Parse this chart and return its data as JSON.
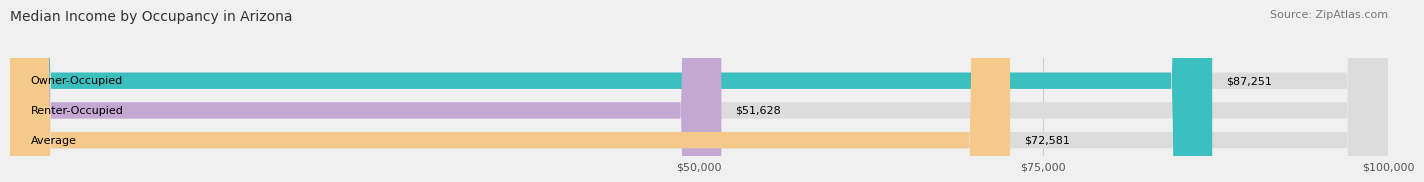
{
  "title": "Median Income by Occupancy in Arizona",
  "source": "Source: ZipAtlas.com",
  "categories": [
    "Owner-Occupied",
    "Renter-Occupied",
    "Average"
  ],
  "values": [
    87251,
    51628,
    72581
  ],
  "bar_colors": [
    "#3bbfbf",
    "#c4a8d4",
    "#f5c98a"
  ],
  "bar_bg_color": "#dcdcdc",
  "value_labels": [
    "$87,251",
    "$51,628",
    "$72,581"
  ],
  "xlim": [
    0,
    100000
  ],
  "xticks": [
    50000,
    75000,
    100000
  ],
  "xtick_labels": [
    "$50,000",
    "$75,000",
    "$100,000"
  ],
  "title_fontsize": 10,
  "label_fontsize": 8,
  "source_fontsize": 8,
  "background_color": "#f0f0f0",
  "bar_height": 0.55
}
